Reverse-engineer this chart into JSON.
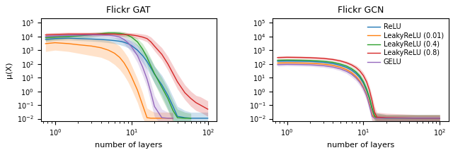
{
  "title_left": "Flickr GAT",
  "title_right": "Flickr GCN",
  "xlabel": "number of layers",
  "ylabel": "μ(X)",
  "xlim": [
    0.65,
    130
  ],
  "ylim_left": [
    0.007,
    200000.0
  ],
  "ylim_right": [
    0.007,
    200000.0
  ],
  "legend_labels": [
    "ReLU",
    "LeakyReLU (0.01)",
    "LeakyReLU (0.4)",
    "LeakyReLU (0.8)",
    "GELU"
  ],
  "colors": [
    "#1f77b4",
    "#ff7f0e",
    "#2ca02c",
    "#d62728",
    "#9467bd"
  ],
  "gat_curves": {
    "relu": {
      "x": [
        0.75,
        1,
        1.5,
        2,
        3,
        4,
        5,
        6,
        7,
        8,
        9,
        10,
        12,
        14,
        16,
        18,
        20,
        25,
        30,
        35,
        40,
        50,
        60,
        70,
        80,
        100
      ],
      "mean": [
        6000,
        7000,
        7500,
        7000,
        6500,
        6000,
        5500,
        5000,
        4500,
        3800,
        3000,
        2200,
        1000,
        400,
        150,
        50,
        18,
        3,
        0.5,
        0.08,
        0.015,
        0.012,
        0.011,
        0.011,
        0.011,
        0.011
      ],
      "lo": [
        4000,
        5000,
        5500,
        5000,
        4500,
        4000,
        3500,
        3000,
        2500,
        2000,
        1500,
        1000,
        400,
        120,
        40,
        12,
        4,
        0.5,
        0.05,
        0.008,
        0.003,
        0.002,
        0.002,
        0.002,
        0.002,
        0.002
      ],
      "hi": [
        10000,
        11000,
        12000,
        11000,
        10000,
        9500,
        9000,
        8500,
        8000,
        7000,
        6000,
        5000,
        2500,
        1200,
        500,
        200,
        70,
        15,
        2.5,
        0.4,
        0.08,
        0.04,
        0.03,
        0.03,
        0.03,
        0.03
      ]
    },
    "leaky01": {
      "x": [
        0.75,
        1,
        1.5,
        2,
        3,
        4,
        5,
        6,
        7,
        8,
        9,
        10,
        12,
        14,
        16,
        18,
        20,
        25,
        30,
        35
      ],
      "mean": [
        3000,
        3500,
        3000,
        2500,
        2000,
        1500,
        1000,
        600,
        300,
        120,
        40,
        12,
        1.2,
        0.1,
        0.012,
        0.011,
        0.011,
        0.011,
        0.011,
        0.011
      ],
      "lo": [
        800,
        1000,
        800,
        600,
        400,
        300,
        180,
        90,
        40,
        15,
        5,
        1.5,
        0.15,
        0.012,
        0.003,
        0.002,
        0.002,
        0.002,
        0.002,
        0.002
      ],
      "hi": [
        9000,
        9500,
        9000,
        8000,
        7000,
        6000,
        5000,
        3500,
        2000,
        800,
        300,
        80,
        8,
        0.8,
        0.06,
        0.04,
        0.03,
        0.03,
        0.03,
        0.03
      ]
    },
    "leaky04": {
      "x": [
        0.75,
        1,
        1.5,
        2,
        3,
        4,
        5,
        6,
        7,
        8,
        9,
        10,
        12,
        14,
        16,
        18,
        20,
        25,
        30,
        35,
        40,
        50,
        60
      ],
      "mean": [
        8000,
        9000,
        10000,
        11000,
        13000,
        16000,
        18000,
        18000,
        17000,
        15000,
        12000,
        9000,
        4000,
        1200,
        300,
        70,
        20,
        2,
        0.3,
        0.04,
        0.012,
        0.011,
        0.011
      ],
      "lo": [
        5000,
        6000,
        7000,
        7500,
        9000,
        11000,
        12000,
        12000,
        11000,
        9000,
        7000,
        5000,
        1800,
        400,
        80,
        15,
        4,
        0.3,
        0.04,
        0.006,
        0.003,
        0.002,
        0.002
      ],
      "hi": [
        13000,
        14000,
        15000,
        16000,
        19000,
        22000,
        25000,
        25000,
        24000,
        21000,
        17000,
        13000,
        7000,
        3000,
        900,
        250,
        70,
        10,
        1.5,
        0.2,
        0.05,
        0.03,
        0.025
      ]
    },
    "leaky08": {
      "x": [
        0.75,
        1,
        1.5,
        2,
        3,
        4,
        5,
        6,
        7,
        8,
        9,
        10,
        12,
        14,
        16,
        18,
        20,
        25,
        30,
        40,
        50,
        60,
        70,
        80,
        100
      ],
      "mean": [
        13000,
        14000,
        15000,
        15000,
        15000,
        15000,
        15000,
        15000,
        14000,
        14000,
        13500,
        13000,
        11000,
        9000,
        7000,
        4000,
        2000,
        500,
        100,
        5,
        0.8,
        0.3,
        0.15,
        0.1,
        0.05
      ],
      "lo": [
        9000,
        10000,
        11000,
        11000,
        11000,
        11000,
        11000,
        11000,
        10500,
        10000,
        9500,
        9000,
        7000,
        5500,
        4000,
        2000,
        900,
        200,
        35,
        1.5,
        0.25,
        0.08,
        0.04,
        0.03,
        0.015
      ],
      "hi": [
        18000,
        19000,
        20000,
        20000,
        20000,
        20500,
        21000,
        21000,
        20000,
        20000,
        19000,
        18500,
        17000,
        15000,
        13000,
        9000,
        5000,
        1500,
        350,
        20,
        3,
        1,
        0.5,
        0.4,
        0.2
      ]
    },
    "gelu": {
      "x": [
        0.75,
        1,
        1.5,
        2,
        3,
        4,
        5,
        6,
        7,
        8,
        9,
        10,
        12,
        14,
        16,
        18,
        20,
        25,
        30,
        35
      ],
      "mean": [
        10000,
        11000,
        12000,
        12500,
        13000,
        13000,
        12500,
        11000,
        9000,
        6000,
        3500,
        1800,
        400,
        60,
        8,
        0.8,
        0.08,
        0.012,
        0.011,
        0.011
      ],
      "lo": [
        7000,
        8000,
        9000,
        9500,
        9500,
        9500,
        9000,
        7500,
        5500,
        3000,
        1500,
        700,
        120,
        15,
        2,
        0.15,
        0.015,
        0.003,
        0.002,
        0.002
      ],
      "hi": [
        14000,
        15000,
        16000,
        16500,
        17000,
        17500,
        17000,
        15000,
        13000,
        10000,
        7000,
        4500,
        1500,
        300,
        40,
        4,
        0.5,
        0.05,
        0.03,
        0.025
      ]
    }
  },
  "gcn_curves": {
    "relu": {
      "x": [
        0.75,
        1,
        1.5,
        2,
        3,
        4,
        5,
        6,
        7,
        8,
        9,
        10,
        11,
        12,
        13,
        14,
        15,
        20,
        50,
        100
      ],
      "mean": [
        155,
        160,
        155,
        150,
        130,
        105,
        78,
        55,
        35,
        20,
        10,
        4,
        1.2,
        0.3,
        0.05,
        0.015,
        0.012,
        0.011,
        0.011,
        0.011
      ],
      "lo": [
        130,
        135,
        130,
        126,
        108,
        87,
        64,
        44,
        27,
        15,
        7,
        2.5,
        0.7,
        0.15,
        0.025,
        0.008,
        0.006,
        0.005,
        0.005,
        0.005
      ],
      "hi": [
        185,
        190,
        184,
        178,
        157,
        130,
        100,
        72,
        50,
        31,
        17,
        7,
        2.2,
        0.6,
        0.1,
        0.03,
        0.025,
        0.02,
        0.02,
        0.02
      ]
    },
    "leaky01": {
      "x": [
        0.75,
        1,
        1.5,
        2,
        3,
        4,
        5,
        6,
        7,
        8,
        9,
        10,
        11,
        12,
        13,
        14,
        15,
        20,
        50,
        100
      ],
      "mean": [
        115,
        120,
        116,
        112,
        97,
        78,
        57,
        38,
        23,
        12,
        5.5,
        2,
        0.6,
        0.12,
        0.02,
        0.012,
        0.011,
        0.011,
        0.011,
        0.011
      ],
      "lo": [
        92,
        97,
        93,
        89,
        76,
        60,
        43,
        28,
        16,
        8,
        3.5,
        1.1,
        0.3,
        0.055,
        0.008,
        0.005,
        0.005,
        0.004,
        0.004,
        0.004
      ],
      "hi": [
        143,
        148,
        143,
        139,
        122,
        100,
        77,
        53,
        35,
        19,
        9.5,
        3.8,
        1.2,
        0.26,
        0.05,
        0.025,
        0.02,
        0.018,
        0.018,
        0.018
      ]
    },
    "leaky04": {
      "x": [
        0.75,
        1,
        1.5,
        2,
        3,
        4,
        5,
        6,
        7,
        8,
        9,
        10,
        11,
        12,
        13,
        14,
        15,
        20,
        50,
        100
      ],
      "mean": [
        185,
        192,
        186,
        180,
        158,
        130,
        98,
        70,
        45,
        26,
        13,
        5,
        1.5,
        0.35,
        0.06,
        0.015,
        0.012,
        0.011,
        0.011,
        0.011
      ],
      "lo": [
        155,
        161,
        155,
        150,
        130,
        106,
        79,
        55,
        34,
        19,
        9,
        3.2,
        0.85,
        0.18,
        0.028,
        0.007,
        0.006,
        0.005,
        0.005,
        0.005
      ],
      "hi": [
        220,
        228,
        222,
        215,
        190,
        160,
        124,
        92,
        62,
        38,
        20,
        8.5,
        2.8,
        0.7,
        0.14,
        0.035,
        0.025,
        0.02,
        0.02,
        0.02
      ]
    },
    "leaky08": {
      "x": [
        0.75,
        1,
        1.5,
        2,
        3,
        4,
        5,
        6,
        7,
        8,
        9,
        10,
        11,
        12,
        13,
        14,
        15,
        20,
        50,
        100
      ],
      "mean": [
        290,
        305,
        296,
        285,
        252,
        210,
        165,
        122,
        85,
        54,
        30,
        14,
        5,
        1.2,
        0.2,
        0.03,
        0.013,
        0.012,
        0.011,
        0.011
      ],
      "lo": [
        238,
        250,
        242,
        232,
        204,
        168,
        131,
        96,
        65,
        40,
        21,
        9,
        3,
        0.65,
        0.09,
        0.012,
        0.006,
        0.005,
        0.005,
        0.005
      ],
      "hi": [
        355,
        372,
        361,
        348,
        309,
        262,
        210,
        160,
        116,
        79,
        47,
        24,
        9,
        2.4,
        0.45,
        0.08,
        0.03,
        0.025,
        0.02,
        0.02
      ]
    },
    "gelu": {
      "x": [
        0.75,
        1,
        1.5,
        2,
        3,
        4,
        5,
        6,
        7,
        8,
        9,
        10,
        11,
        12,
        13,
        14,
        15,
        20,
        50,
        100
      ],
      "mean": [
        88,
        92,
        89,
        86,
        74,
        59,
        43,
        29,
        18,
        9.5,
        4.5,
        1.7,
        0.5,
        0.09,
        0.015,
        0.011,
        0.011,
        0.011,
        0.011,
        0.011
      ],
      "lo": [
        68,
        72,
        69,
        66,
        56,
        44,
        31,
        20,
        11,
        5.8,
        2.5,
        0.85,
        0.22,
        0.035,
        0.006,
        0.004,
        0.004,
        0.004,
        0.004,
        0.004
      ],
      "hi": [
        112,
        116,
        113,
        109,
        96,
        80,
        60,
        43,
        28,
        16,
        8.5,
        3.5,
        1.1,
        0.22,
        0.04,
        0.02,
        0.018,
        0.016,
        0.016,
        0.016
      ]
    }
  }
}
